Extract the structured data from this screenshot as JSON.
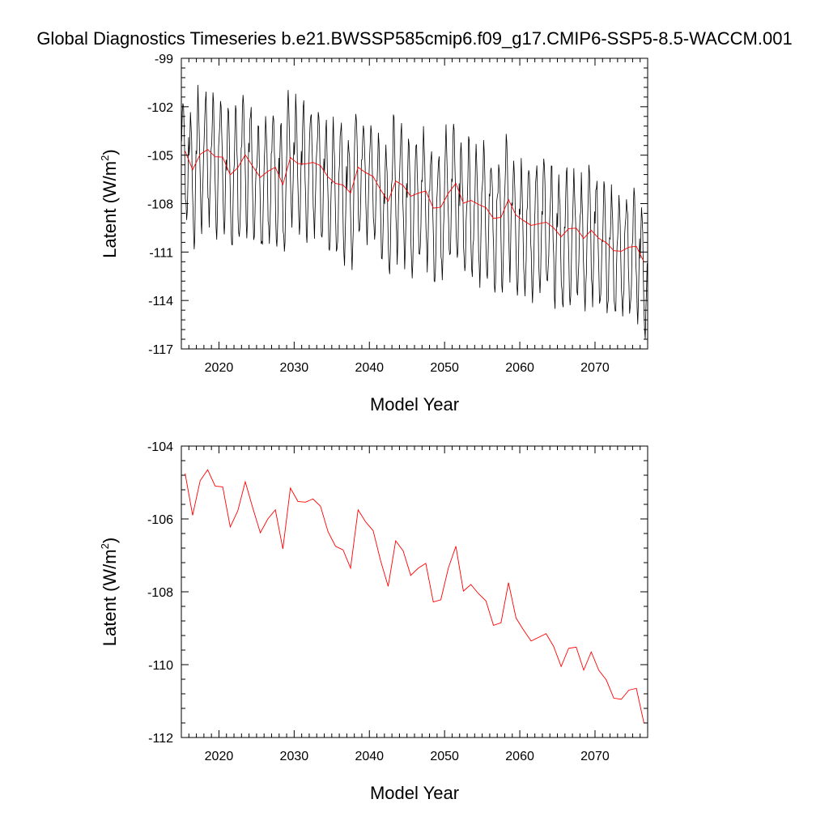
{
  "title": "Global Diagnostics Timeseries b.e21.BWSSP585cmip6.f09_g17.CMIP6-SSP5-8.5-WACCM.001",
  "colors": {
    "monthly": "#000000",
    "annual": "#ff0000",
    "axes": "#000000"
  },
  "chart_data": [
    {
      "type": "line",
      "panel": "top",
      "xlabel": "Model Year",
      "ylabel_main": "Latent (W/m",
      "ylabel_sup": "2",
      "ylabel_close": ")",
      "xlim": [
        2015,
        2077
      ],
      "ylim": [
        -117,
        -99
      ],
      "xticks": [
        2020,
        2030,
        2040,
        2050,
        2060,
        2070
      ],
      "yticks": [
        -117,
        -114,
        -111,
        -108,
        -105,
        -102,
        -99
      ],
      "series": [
        {
          "style": "monthly",
          "cycle": [
            0.6,
            2.2,
            3.4,
            3.0,
            1.5,
            -0.4,
            -2.2,
            -3.6,
            -4.2,
            -3.4,
            -1.6,
            0.4
          ],
          "x_start": 2015.04,
          "x_step": 0.0833
        },
        {
          "style": "annual",
          "x": [
            2015.5,
            2016.5,
            2017.5,
            2018.5,
            2019.5,
            2020.5,
            2021.5,
            2022.5,
            2023.5,
            2024.5,
            2025.5,
            2026.5,
            2027.5,
            2028.5,
            2029.5,
            2030.5,
            2031.5,
            2032.5,
            2033.5,
            2034.5,
            2035.5,
            2036.5,
            2037.5,
            2038.5,
            2039.5,
            2040.5,
            2041.5,
            2042.5,
            2043.5,
            2044.5,
            2045.5,
            2046.5,
            2047.5,
            2048.5,
            2049.5,
            2050.5,
            2051.5,
            2052.5,
            2053.5,
            2054.5,
            2055.5,
            2056.5,
            2057.5,
            2058.5,
            2059.5,
            2060.5,
            2061.5,
            2062.5,
            2063.5,
            2064.5,
            2065.5,
            2066.5,
            2067.5,
            2068.5,
            2069.5,
            2070.5,
            2071.5,
            2072.5,
            2073.5,
            2074.5,
            2075.5,
            2076.5
          ],
          "values": [
            -104.75,
            -105.9,
            -104.95,
            -104.65,
            -105.1,
            -105.12,
            -106.22,
            -105.78,
            -104.98,
            -105.7,
            -106.38,
            -106.0,
            -105.75,
            -106.82,
            -105.15,
            -105.52,
            -105.54,
            -105.45,
            -105.65,
            -106.35,
            -106.75,
            -106.85,
            -107.35,
            -105.75,
            -106.08,
            -106.32,
            -107.15,
            -107.85,
            -106.6,
            -106.88,
            -107.55,
            -107.35,
            -107.22,
            -108.28,
            -108.22,
            -107.35,
            -106.75,
            -107.98,
            -107.8,
            -108.05,
            -108.25,
            -108.92,
            -108.85,
            -107.75,
            -108.72,
            -109.05,
            -109.35,
            -109.25,
            -109.15,
            -109.5,
            -110.05,
            -109.55,
            -109.52,
            -110.15,
            -109.65,
            -110.15,
            -110.42,
            -110.92,
            -110.95,
            -110.7,
            -110.65,
            -111.6
          ]
        }
      ]
    },
    {
      "type": "line",
      "panel": "bottom",
      "xlabel": "Model Year",
      "ylabel_main": "Latent (W/m",
      "ylabel_sup": "2",
      "ylabel_close": ")",
      "xlim": [
        2015,
        2077
      ],
      "ylim": [
        -112,
        -104
      ],
      "xticks": [
        2020,
        2030,
        2040,
        2050,
        2060,
        2070
      ],
      "yticks": [
        -112,
        -110,
        -108,
        -106,
        -104
      ],
      "series": [
        {
          "style": "annual",
          "x": [
            2015.5,
            2016.5,
            2017.5,
            2018.5,
            2019.5,
            2020.5,
            2021.5,
            2022.5,
            2023.5,
            2024.5,
            2025.5,
            2026.5,
            2027.5,
            2028.5,
            2029.5,
            2030.5,
            2031.5,
            2032.5,
            2033.5,
            2034.5,
            2035.5,
            2036.5,
            2037.5,
            2038.5,
            2039.5,
            2040.5,
            2041.5,
            2042.5,
            2043.5,
            2044.5,
            2045.5,
            2046.5,
            2047.5,
            2048.5,
            2049.5,
            2050.5,
            2051.5,
            2052.5,
            2053.5,
            2054.5,
            2055.5,
            2056.5,
            2057.5,
            2058.5,
            2059.5,
            2060.5,
            2061.5,
            2062.5,
            2063.5,
            2064.5,
            2065.5,
            2066.5,
            2067.5,
            2068.5,
            2069.5,
            2070.5,
            2071.5,
            2072.5,
            2073.5,
            2074.5,
            2075.5,
            2076.5
          ],
          "values": [
            -104.75,
            -105.9,
            -104.95,
            -104.65,
            -105.1,
            -105.12,
            -106.22,
            -105.78,
            -104.98,
            -105.7,
            -106.38,
            -106.0,
            -105.75,
            -106.82,
            -105.15,
            -105.52,
            -105.54,
            -105.45,
            -105.65,
            -106.35,
            -106.75,
            -106.85,
            -107.35,
            -105.75,
            -106.08,
            -106.32,
            -107.15,
            -107.85,
            -106.6,
            -106.88,
            -107.55,
            -107.35,
            -107.22,
            -108.28,
            -108.22,
            -107.35,
            -106.75,
            -107.98,
            -107.8,
            -108.05,
            -108.25,
            -108.92,
            -108.85,
            -107.75,
            -108.72,
            -109.05,
            -109.35,
            -109.25,
            -109.15,
            -109.5,
            -110.05,
            -109.55,
            -109.52,
            -110.15,
            -109.65,
            -110.15,
            -110.42,
            -110.92,
            -110.95,
            -110.7,
            -110.65,
            -111.6
          ]
        }
      ]
    }
  ]
}
